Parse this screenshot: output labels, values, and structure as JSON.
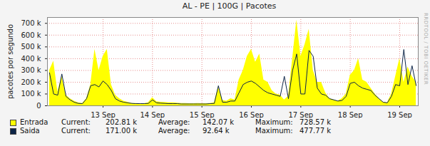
{
  "chart_data": {
    "type": "area",
    "title": "AL - PE | 100G | Pacotes",
    "ylabel": "pacotes por segundo",
    "annotations": [
      "RRDTOOL / TOBI OETIKER"
    ],
    "grid": true,
    "categories": [
      null,
      null,
      null,
      null,
      null,
      null,
      null,
      null,
      null,
      null,
      null,
      null,
      null,
      "13 Sep",
      null,
      null,
      null,
      null,
      null,
      null,
      null,
      null,
      null,
      null,
      null,
      "14 Sep",
      null,
      null,
      null,
      null,
      null,
      null,
      null,
      null,
      null,
      null,
      null,
      "15 Sep",
      null,
      null,
      null,
      null,
      null,
      null,
      null,
      null,
      null,
      null,
      null,
      "16 Sep",
      null,
      null,
      null,
      null,
      null,
      null,
      null,
      null,
      null,
      null,
      null,
      "17 Sep",
      null,
      null,
      null,
      null,
      null,
      null,
      null,
      null,
      null,
      null,
      null,
      "18 Sep",
      null,
      null,
      null,
      null,
      null,
      null,
      null,
      null,
      null,
      null,
      null,
      "19 Sep",
      null,
      null,
      null,
      null
    ],
    "ylim": [
      0,
      750000
    ],
    "yticks": [
      0,
      {
        "value": 100000,
        "label": "100 k"
      },
      {
        "value": 200000,
        "label": "200 k"
      },
      {
        "value": 300000,
        "label": "300 k"
      },
      {
        "value": 400000,
        "label": "400 k"
      },
      {
        "value": 500000,
        "label": "500 k"
      },
      {
        "value": 600000,
        "label": "600 k"
      },
      {
        "value": 700000,
        "label": "700 k"
      }
    ],
    "series": [
      {
        "name": "Entrada",
        "type": "area",
        "color": "#ffff00",
        "current": {
          "value": 202810,
          "label": "202.81 k"
        },
        "average": {
          "value": 142070,
          "label": "142.07 k"
        },
        "maximum": {
          "value": 728570,
          "label": "728.57 k"
        },
        "values": [
          300000,
          380000,
          120000,
          250000,
          90000,
          60000,
          40000,
          25000,
          20000,
          60000,
          180000,
          480000,
          300000,
          420000,
          480000,
          180000,
          90000,
          60000,
          40000,
          30000,
          20000,
          20000,
          18000,
          18000,
          25000,
          70000,
          35000,
          30000,
          28000,
          25000,
          25000,
          22000,
          20000,
          20000,
          18000,
          18000,
          20000,
          18000,
          18000,
          20000,
          25000,
          160000,
          45000,
          40000,
          60000,
          50000,
          220000,
          300000,
          420000,
          480000,
          370000,
          440000,
          220000,
          200000,
          130000,
          100000,
          90000,
          50000,
          80000,
          400000,
          728570,
          420000,
          520000,
          650000,
          300000,
          200000,
          200000,
          110000,
          60000,
          50000,
          40000,
          60000,
          100000,
          260000,
          300000,
          400000,
          220000,
          200000,
          150000,
          100000,
          60000,
          30000,
          25000,
          100000,
          250000,
          400000,
          200000,
          330000,
          250000,
          200000
        ]
      },
      {
        "name": "Saida",
        "type": "line",
        "color": "#0c2447",
        "current": {
          "value": 171000,
          "label": "171.00 k"
        },
        "average": {
          "value": 92640,
          "label": "92.64 k"
        },
        "maximum": {
          "value": 477770,
          "label": "477.77 k"
        },
        "values": [
          280000,
          100000,
          90000,
          270000,
          80000,
          50000,
          30000,
          20000,
          18000,
          60000,
          170000,
          180000,
          160000,
          210000,
          180000,
          130000,
          60000,
          40000,
          30000,
          25000,
          20000,
          18000,
          18000,
          18000,
          20000,
          50000,
          25000,
          22000,
          20000,
          18000,
          18000,
          18000,
          15000,
          15000,
          15000,
          15000,
          15000,
          15000,
          15000,
          18000,
          20000,
          170000,
          30000,
          30000,
          40000,
          40000,
          110000,
          180000,
          200000,
          210000,
          190000,
          160000,
          130000,
          110000,
          100000,
          90000,
          80000,
          250000,
          60000,
          300000,
          440000,
          100000,
          100000,
          470000,
          420000,
          150000,
          100000,
          90000,
          60000,
          50000,
          40000,
          45000,
          80000,
          190000,
          200000,
          170000,
          150000,
          140000,
          130000,
          90000,
          60000,
          30000,
          25000,
          80000,
          180000,
          170000,
          477770,
          180000,
          340000,
          171000
        ]
      }
    ],
    "stat_labels": {
      "current": "Current:",
      "average": "Average:",
      "maximum": "Maximum:"
    }
  }
}
